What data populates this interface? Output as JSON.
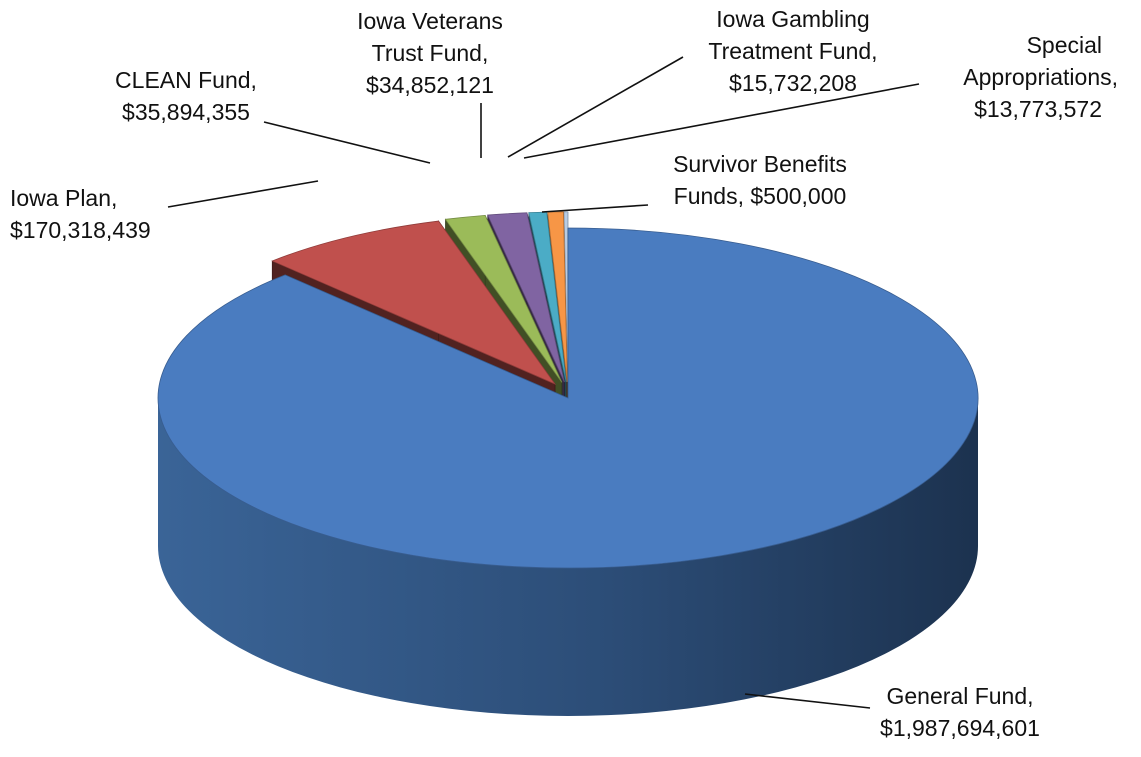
{
  "chart_data": {
    "type": "pie",
    "title": "",
    "style": "3d-exploded",
    "colors_note": "slice colors follow slices order",
    "slices": [
      {
        "label": "General Fund,",
        "value_text": "$1,987,694,601",
        "value": 1987694601,
        "color": "#4a7cc0"
      },
      {
        "label": "Iowa Plan,",
        "value_text": "$170,318,439",
        "value": 170318439,
        "color": "#c0504d"
      },
      {
        "label": "CLEAN Fund,",
        "value_text": "$35,894,355",
        "value": 35894355,
        "color": "#9bbb59"
      },
      {
        "label": "Iowa Veterans Trust Fund,",
        "value_text": "$34,852,121",
        "value": 34852121,
        "color": "#8064a2"
      },
      {
        "label": "Iowa Gambling Treatment Fund,",
        "value_text": "$15,732,208",
        "value": 15732208,
        "color": "#4bacc6"
      },
      {
        "label": "Special Appropriations,",
        "value_text": "$13,773,572",
        "value": 13773572,
        "color": "#f79646"
      },
      {
        "label": "Survivor Benefits Funds,",
        "value_text": "$500,000",
        "value": 500000,
        "color": "#b8cce4"
      }
    ],
    "labels": {
      "general": [
        "General Fund,",
        "$1,987,694,601"
      ],
      "iowa_plan": [
        "Iowa Plan,",
        "$170,318,439"
      ],
      "clean": [
        "CLEAN Fund,",
        "$35,894,355"
      ],
      "veterans": [
        "Iowa Veterans",
        "Trust Fund,",
        "$34,852,121"
      ],
      "gambling": [
        "Iowa Gambling",
        "Treatment Fund,",
        "$15,732,208"
      ],
      "special": [
        "Special",
        "Appropriations,",
        "$13,773,572"
      ],
      "survivor": [
        "Survivor Benefits",
        "Funds, $500,000"
      ]
    }
  }
}
